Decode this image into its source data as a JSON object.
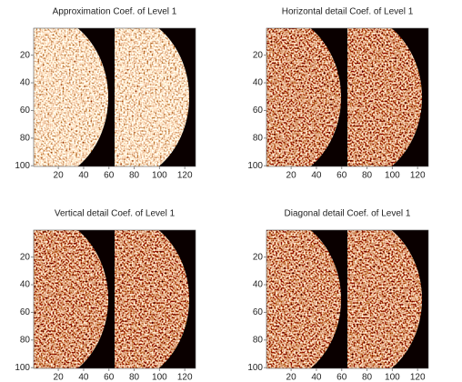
{
  "chart_data": [
    {
      "type": "image",
      "title": "Approximation Coef. of Level 1",
      "xlim": [
        0.5,
        128.5
      ],
      "ylim": [
        100.5,
        0.5
      ],
      "xticks": [
        20,
        40,
        60,
        80,
        100,
        120
      ],
      "yticks": [
        20,
        40,
        60,
        80,
        100
      ]
    },
    {
      "type": "image",
      "title": "Horizontal detail Coef. of Level 1",
      "xlim": [
        0.5,
        128.5
      ],
      "ylim": [
        100.5,
        0.5
      ],
      "xticks": [
        20,
        40,
        60,
        80,
        100,
        120
      ],
      "yticks": [
        20,
        40,
        60,
        80,
        100
      ]
    },
    {
      "type": "image",
      "title": "Vertical detail Coef. of Level 1",
      "xlim": [
        0.5,
        128.5
      ],
      "ylim": [
        100.5,
        0.5
      ],
      "xticks": [
        20,
        40,
        60,
        80,
        100,
        120
      ],
      "yticks": [
        20,
        40,
        60,
        80,
        100
      ]
    },
    {
      "type": "image",
      "title": "Diagonal detail Coef. of Level 1",
      "xlim": [
        0.5,
        128.5
      ],
      "ylim": [
        100.5,
        0.5
      ],
      "xticks": [
        20,
        40,
        60,
        80,
        100,
        120
      ],
      "yticks": [
        20,
        40,
        60,
        80,
        100
      ]
    }
  ]
}
